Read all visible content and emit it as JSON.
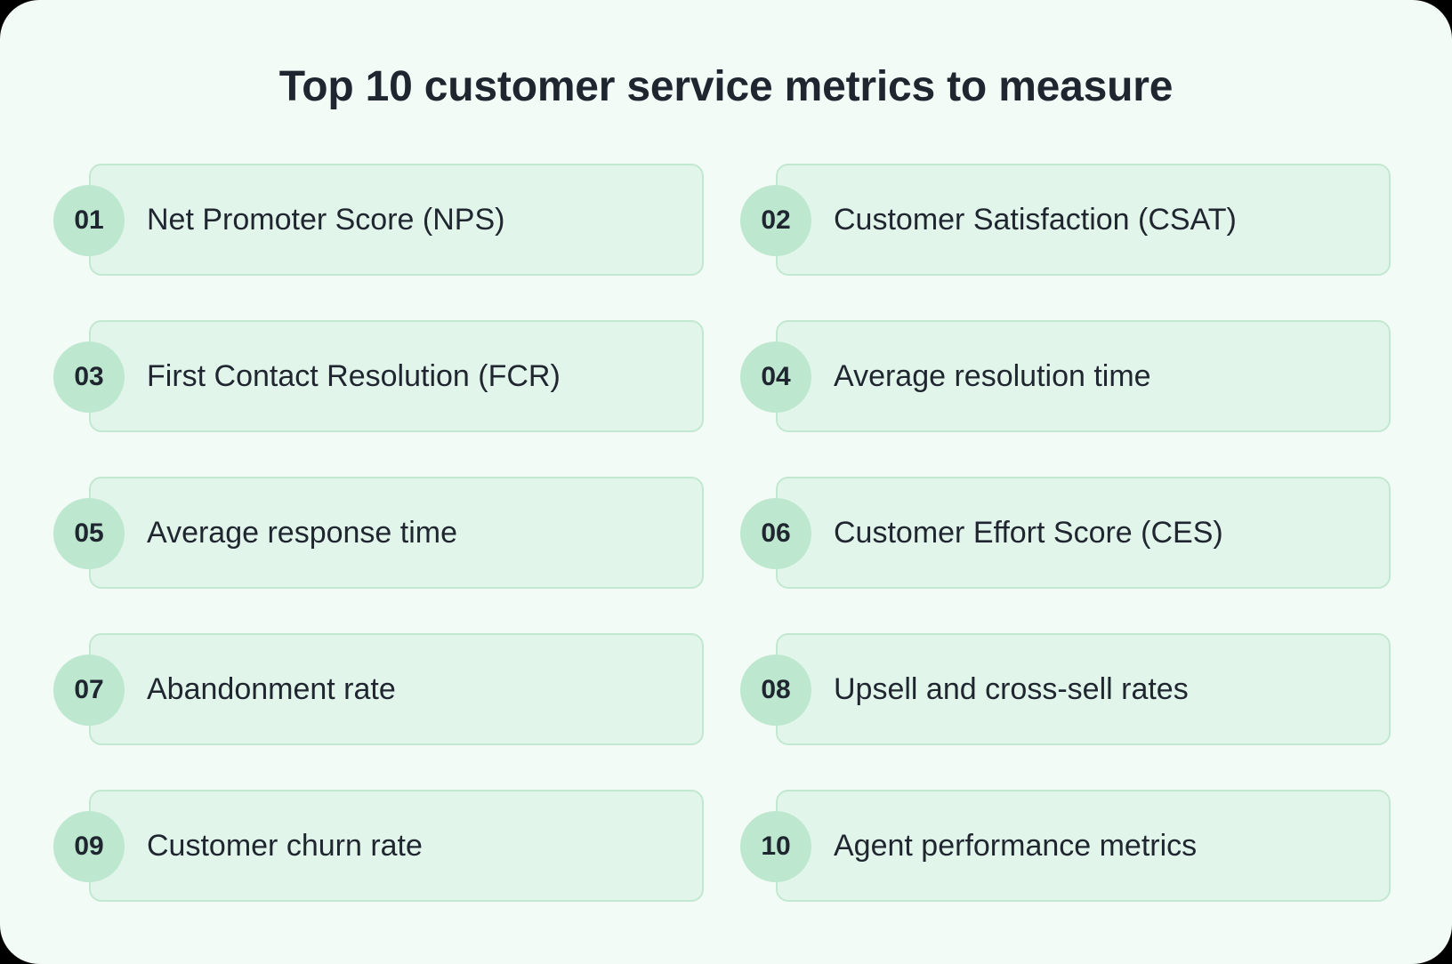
{
  "title": "Top 10 customer service metrics to measure",
  "colors": {
    "background": "#f3fbf6",
    "card": "#e2f5ea",
    "card_border": "#c2e8d1",
    "badge": "#bde8cf",
    "text": "#1f2630"
  },
  "metrics": [
    {
      "number": "01",
      "label": "Net Promoter Score (NPS)"
    },
    {
      "number": "02",
      "label": "Customer Satisfaction (CSAT)"
    },
    {
      "number": "03",
      "label": "First Contact Resolution (FCR)"
    },
    {
      "number": "04",
      "label": "Average resolution time"
    },
    {
      "number": "05",
      "label": "Average response time"
    },
    {
      "number": "06",
      "label": "Customer Effort Score (CES)"
    },
    {
      "number": "07",
      "label": "Abandonment rate"
    },
    {
      "number": "08",
      "label": "Upsell and cross-sell rates"
    },
    {
      "number": "09",
      "label": "Customer churn rate"
    },
    {
      "number": "10",
      "label": "Agent performance metrics"
    }
  ]
}
